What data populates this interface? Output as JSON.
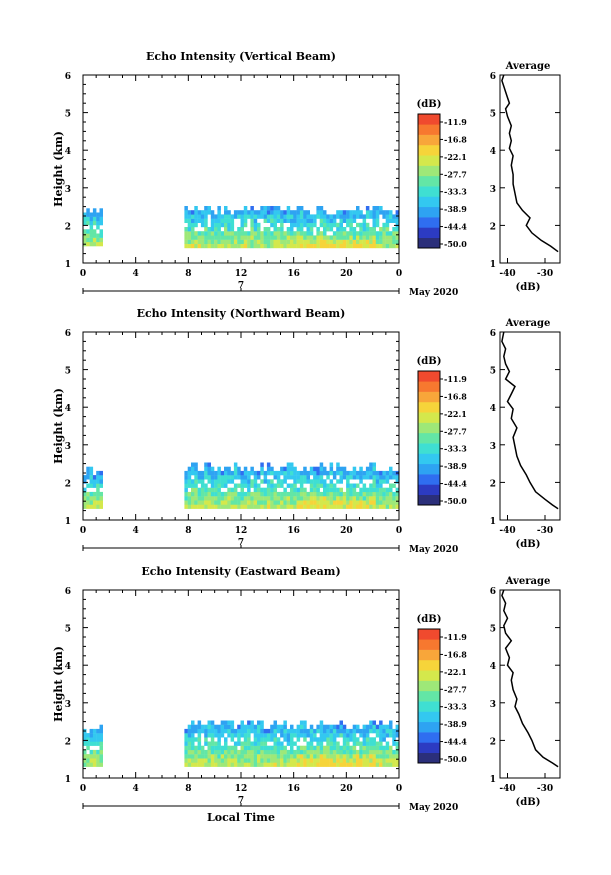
{
  "chart_data": [
    {
      "type": "heatmap",
      "title": "Echo Intensity (Vertical Beam)",
      "ylabel": "Height (km)",
      "xlabel": "",
      "x_ticks": [
        "0",
        "4",
        "8",
        "12",
        "16",
        "20",
        "0"
      ],
      "xlim": [
        0,
        24
      ],
      "ylim": [
        1,
        6
      ],
      "y_ticks": [
        "1",
        "2",
        "3",
        "4",
        "5",
        "6"
      ],
      "date_tick": "7",
      "date_label": "May 2020",
      "colorbar": {
        "unit": "(dB)",
        "ticks": [
          "-11.9",
          "-16.8",
          "-22.1",
          "-27.7",
          "-33.3",
          "-38.9",
          "-44.4",
          "-50.0"
        ]
      },
      "echo_regions": [
        {
          "x0": 0.0,
          "x1": 1.3,
          "ybottom": 1.45,
          "ytop": 2.5
        },
        {
          "x0": 7.7,
          "x1": 24.0,
          "ybottom": 1.4,
          "ytop": 2.55
        }
      ],
      "profile": {
        "title": "Average",
        "xlabel": "(dB)",
        "x_ticks": [
          "-40",
          "-30"
        ],
        "xlim": [
          -42,
          -26
        ],
        "ylim": [
          1,
          6
        ],
        "y_ticks": [
          "1",
          "2",
          "3",
          "4",
          "5",
          "6"
        ],
        "x": [
          -26.5,
          -28.5,
          -31.0,
          -33.5,
          -35.0,
          -34.0,
          -36.0,
          -37.5,
          -38.0,
          -38.5,
          -38.5,
          -39.0,
          -38.5,
          -39.5,
          -39.0,
          -39.5,
          -39.0,
          -40.0,
          -40.5,
          -39.5,
          -40.0,
          -40.5,
          -41.0,
          -41.5,
          -41.0
        ],
        "y": [
          1.3,
          1.45,
          1.6,
          1.8,
          2.0,
          2.2,
          2.4,
          2.6,
          2.85,
          3.1,
          3.35,
          3.6,
          3.85,
          4.05,
          4.25,
          4.45,
          4.65,
          4.9,
          5.1,
          5.25,
          5.4,
          5.55,
          5.7,
          5.85,
          6.0
        ]
      }
    },
    {
      "type": "heatmap",
      "title": "Echo Intensity (Northward Beam)",
      "ylabel": "Height (km)",
      "xlabel": "",
      "x_ticks": [
        "0",
        "4",
        "8",
        "12",
        "16",
        "20",
        "0"
      ],
      "xlim": [
        0,
        24
      ],
      "ylim": [
        1,
        6
      ],
      "y_ticks": [
        "1",
        "2",
        "3",
        "4",
        "5",
        "6"
      ],
      "date_tick": "7",
      "date_label": "May 2020",
      "colorbar": {
        "unit": "(dB)",
        "ticks": [
          "-11.9",
          "-16.8",
          "-22.1",
          "-27.7",
          "-33.3",
          "-38.9",
          "-44.4",
          "-50.0"
        ]
      },
      "echo_regions": [
        {
          "x0": 0.0,
          "x1": 1.3,
          "ybottom": 1.3,
          "ytop": 2.4
        },
        {
          "x0": 7.7,
          "x1": 24.0,
          "ybottom": 1.3,
          "ytop": 2.5
        }
      ],
      "profile": {
        "title": "Average",
        "xlabel": "(dB)",
        "x_ticks": [
          "-40",
          "-30"
        ],
        "xlim": [
          -42,
          -26
        ],
        "ylim": [
          1,
          6
        ],
        "y_ticks": [
          "1",
          "2",
          "3",
          "4",
          "5",
          "6"
        ],
        "x": [
          -26.5,
          -28.0,
          -30.0,
          -32.5,
          -34.0,
          -35.0,
          -36.5,
          -37.5,
          -38.0,
          -38.5,
          -37.5,
          -39.0,
          -38.5,
          -40.0,
          -39.0,
          -38.0,
          -40.5,
          -39.5,
          -40.5,
          -41.0,
          -40.5,
          -41.5,
          -41.0
        ],
        "y": [
          1.3,
          1.4,
          1.55,
          1.75,
          2.0,
          2.2,
          2.45,
          2.7,
          2.95,
          3.2,
          3.45,
          3.7,
          3.95,
          4.15,
          4.35,
          4.55,
          4.75,
          4.95,
          5.15,
          5.35,
          5.55,
          5.75,
          6.0
        ]
      }
    },
    {
      "type": "heatmap",
      "title": "Echo Intensity (Eastward Beam)",
      "ylabel": "Height (km)",
      "xlabel": "Local Time",
      "x_ticks": [
        "0",
        "4",
        "8",
        "12",
        "16",
        "20",
        "0"
      ],
      "xlim": [
        0,
        24
      ],
      "ylim": [
        1,
        6
      ],
      "y_ticks": [
        "1",
        "2",
        "3",
        "4",
        "5",
        "6"
      ],
      "date_tick": "7",
      "date_label": "May 2020",
      "colorbar": {
        "unit": "(dB)",
        "ticks": [
          "-11.9",
          "-16.8",
          "-22.1",
          "-27.7",
          "-33.3",
          "-38.9",
          "-44.4",
          "-50.0"
        ]
      },
      "echo_regions": [
        {
          "x0": 0.0,
          "x1": 1.3,
          "ybottom": 1.3,
          "ytop": 2.4
        },
        {
          "x0": 7.7,
          "x1": 24.0,
          "ybottom": 1.3,
          "ytop": 2.55
        }
      ],
      "profile": {
        "title": "Average",
        "xlabel": "(dB)",
        "x_ticks": [
          "-40",
          "-30"
        ],
        "xlim": [
          -42,
          -26
        ],
        "ylim": [
          1,
          6
        ],
        "y_ticks": [
          "1",
          "2",
          "3",
          "4",
          "5",
          "6"
        ],
        "x": [
          -26.5,
          -28.0,
          -30.5,
          -32.5,
          -33.5,
          -34.5,
          -36.0,
          -37.0,
          -38.0,
          -37.5,
          -38.5,
          -39.0,
          -38.5,
          -40.0,
          -39.5,
          -40.5,
          -39.0,
          -40.5,
          -41.0,
          -40.0,
          -41.0,
          -40.5,
          -41.5,
          -41.0
        ],
        "y": [
          1.3,
          1.4,
          1.55,
          1.75,
          2.0,
          2.2,
          2.45,
          2.7,
          2.9,
          3.1,
          3.35,
          3.6,
          3.8,
          4.0,
          4.2,
          4.45,
          4.65,
          4.85,
          5.05,
          5.25,
          5.45,
          5.65,
          5.85,
          6.0
        ]
      }
    }
  ],
  "colors": {
    "scale": [
      "#2b2f7a",
      "#2c3bc2",
      "#2f6ef0",
      "#2ea3f2",
      "#33c8f0",
      "#3fdfd2",
      "#63e6a6",
      "#9ee878",
      "#d4e84c",
      "#f6d43a",
      "#f8a63a",
      "#f7782f",
      "#f04a2e"
    ]
  }
}
